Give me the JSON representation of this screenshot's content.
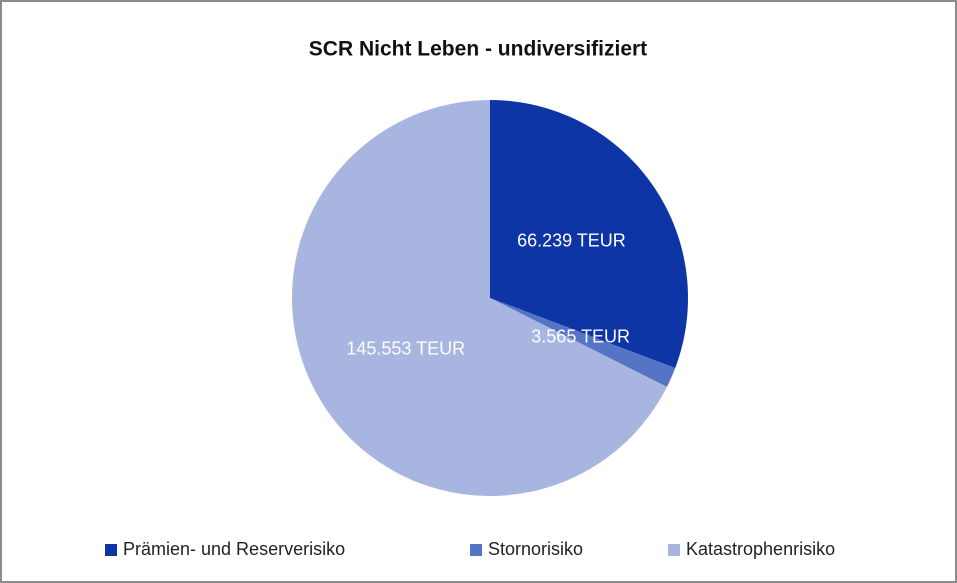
{
  "chart_data": {
    "type": "pie",
    "title": "SCR Nicht Leben - undiversifiziert",
    "categories": [
      "Prämien- und Reserverisiko",
      "Stornorisiko",
      "Katastrophenrisiko"
    ],
    "values": [
      66239,
      3565,
      145553
    ],
    "value_labels": [
      "66.239 TEUR",
      "3.565 TEUR",
      "145.553 TEUR"
    ],
    "colors": [
      "#0d35a6",
      "#5674c6",
      "#a8b5e0"
    ],
    "legend": "bottom"
  }
}
